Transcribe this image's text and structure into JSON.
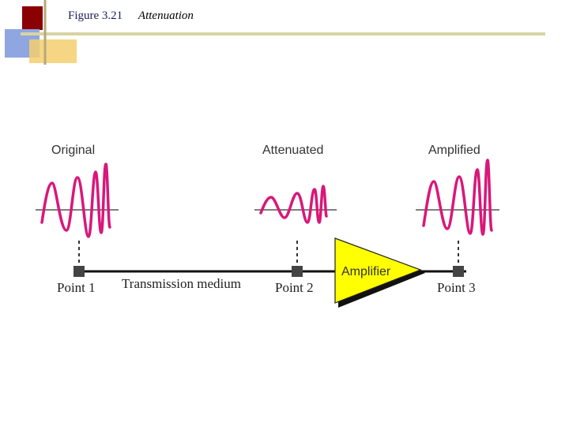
{
  "caption": {
    "figure_number": "Figure 3.21",
    "title": "Attenuation"
  },
  "signals": {
    "original": "Original",
    "attenuated": "Attenuated",
    "amplified": "Amplified"
  },
  "points": {
    "point1": "Point 1",
    "point2": "Point 2",
    "point3": "Point 3"
  },
  "medium_label": "Transmission medium",
  "amplifier_label": "Amplifier",
  "colors": {
    "signal": "#d9177a",
    "amplifier_fill": "#ffff00",
    "header_dark_red": "#8b0000",
    "header_blue": "#8fa6e0",
    "header_gold": "#f5cf6e",
    "header_line": "#d8d4a4"
  }
}
